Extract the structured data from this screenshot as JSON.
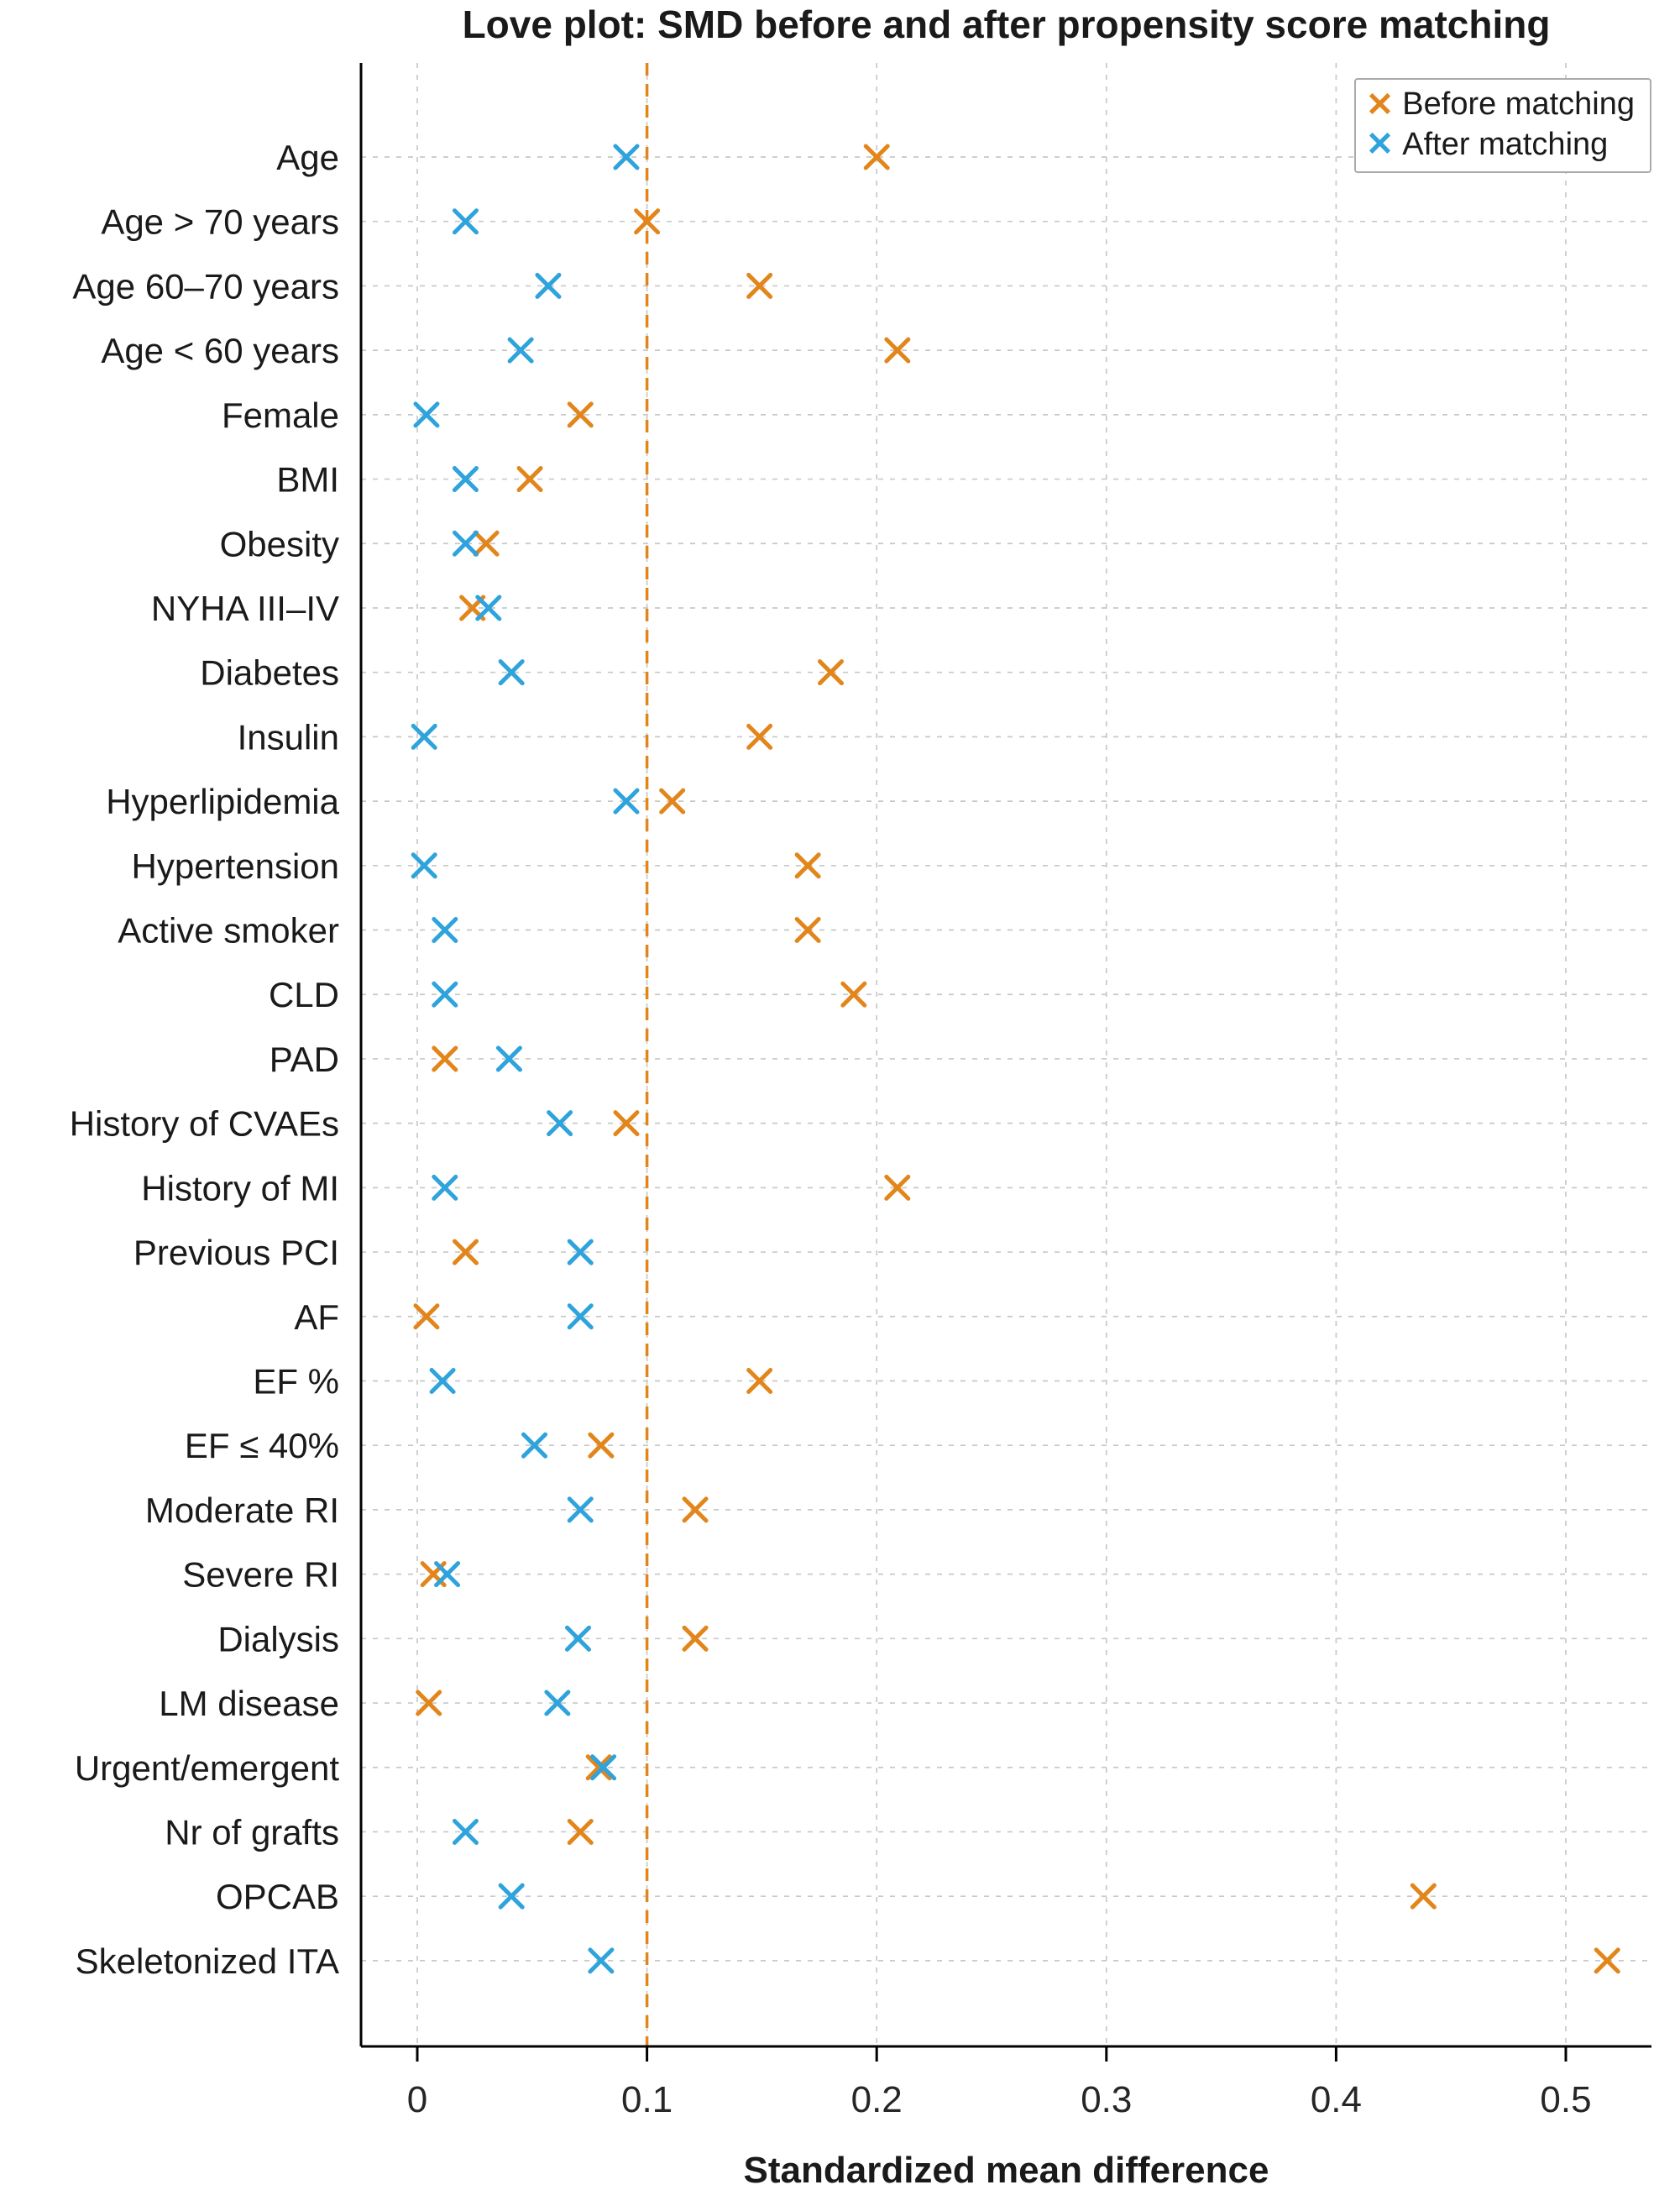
{
  "chart_data": {
    "type": "scatter",
    "title": "Love plot: SMD before and after propensity score matching",
    "xlabel": "Standardized mean difference",
    "xlim": [
      -0.025,
      0.54
    ],
    "xticks": [
      0,
      0.1,
      0.2,
      0.3,
      0.4,
      0.5
    ],
    "xtick_labels": [
      "0",
      "0.1",
      "0.2",
      "0.3",
      "0.4",
      "0.5"
    ],
    "reference_line": 0.1,
    "grid": "dashed horizontal and vertical gridlines",
    "legend_position": "top-right",
    "colors": {
      "before": "#E2861B",
      "after": "#2EA3DC",
      "reference": "#E2861B",
      "grid": "#c8c8c8",
      "axis": "#000000",
      "text": "#1a1a1a"
    },
    "categories": [
      "Age",
      "Age > 70 years",
      "Age 60–70 years",
      "Age < 60 years",
      "Female",
      "BMI",
      "Obesity",
      "NYHA III–IV",
      "Diabetes",
      "Insulin",
      "Hyperlipidemia",
      "Hypertension",
      "Active smoker",
      "CLD",
      "PAD",
      "History of CVAEs",
      "History of MI",
      "Previous PCI",
      "AF",
      "EF %",
      "EF ≤ 40%",
      "Moderate RI",
      "Severe RI",
      "Dialysis",
      "LM disease",
      "Urgent/emergent",
      "Nr of grafts",
      "OPCAB",
      "Skeletonized ITA"
    ],
    "series": [
      {
        "name": "Before matching",
        "marker": "x",
        "color": "#E2861B",
        "values": [
          0.2,
          0.1,
          0.149,
          0.209,
          0.071,
          0.049,
          0.03,
          0.024,
          0.18,
          0.149,
          0.111,
          0.17,
          0.17,
          0.19,
          0.012,
          0.091,
          0.209,
          0.021,
          0.004,
          0.149,
          0.08,
          0.121,
          0.007,
          0.121,
          0.005,
          0.079,
          0.071,
          0.438,
          0.518
        ]
      },
      {
        "name": "After matching",
        "marker": "x",
        "color": "#2EA3DC",
        "values": [
          0.091,
          0.021,
          0.057,
          0.045,
          0.004,
          0.021,
          0.021,
          0.031,
          0.041,
          0.003,
          0.091,
          0.003,
          0.012,
          0.012,
          0.04,
          0.062,
          0.012,
          0.071,
          0.071,
          0.011,
          0.051,
          0.071,
          0.013,
          0.07,
          0.061,
          0.081,
          0.021,
          0.041,
          0.08
        ]
      }
    ]
  }
}
